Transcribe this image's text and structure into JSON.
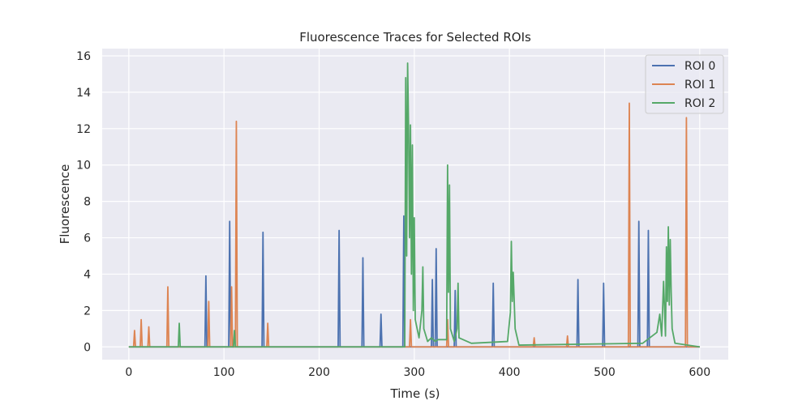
{
  "chart_data": {
    "type": "line",
    "title": "Fluorescence Traces for Selected ROIs",
    "xlabel": "Time (s)",
    "ylabel": "Fluorescence",
    "xlim": [
      -28,
      630
    ],
    "ylim": [
      -0.7,
      16.4
    ],
    "xticks": [
      0,
      100,
      200,
      300,
      400,
      500,
      600
    ],
    "yticks": [
      0,
      2,
      4,
      6,
      8,
      10,
      12,
      14,
      16
    ],
    "grid": true,
    "legend_position": "top-right",
    "series": [
      {
        "name": "ROI 0",
        "color": "#4c72b0",
        "x": [
          0,
          80,
          81,
          82,
          105,
          106,
          107,
          140,
          141,
          142,
          220,
          221,
          222,
          245,
          246,
          247,
          264,
          265,
          266,
          288,
          289,
          290,
          318,
          319,
          320,
          322,
          323,
          324,
          342,
          343,
          344,
          382,
          383,
          384,
          471,
          472,
          473,
          498,
          499,
          500,
          535,
          536,
          537,
          545,
          546,
          547,
          600
        ],
        "y": [
          0,
          0,
          3.9,
          0,
          0,
          6.9,
          0,
          0,
          6.3,
          0,
          0,
          6.4,
          0,
          0,
          4.9,
          0,
          0,
          1.8,
          0,
          0,
          7.2,
          0,
          0,
          3.7,
          0,
          0,
          5.4,
          0,
          0,
          3.1,
          0,
          0,
          3.5,
          0,
          0,
          3.7,
          0,
          0,
          3.5,
          0,
          0,
          6.9,
          0,
          0,
          6.4,
          0,
          0
        ]
      },
      {
        "name": "ROI 1",
        "color": "#dd8452",
        "x": [
          0,
          5,
          6,
          7,
          12,
          13,
          14,
          20,
          21,
          22,
          40,
          41,
          42,
          83,
          84,
          85,
          107,
          108,
          109,
          112,
          113,
          114,
          145,
          146,
          147,
          295,
          296,
          297,
          334,
          335,
          336,
          425,
          426,
          427,
          460,
          461,
          462,
          525,
          526,
          527,
          585,
          586,
          587,
          600
        ],
        "y": [
          0,
          0,
          0.9,
          0,
          0,
          1.5,
          0,
          0,
          1.1,
          0,
          0,
          3.3,
          0,
          0,
          2.5,
          0,
          0,
          3.3,
          0,
          0,
          12.4,
          0,
          0,
          1.3,
          0,
          0,
          1.5,
          0,
          0,
          1.5,
          0,
          0,
          0.5,
          0,
          0,
          0.6,
          0,
          0,
          13.4,
          0,
          0,
          12.6,
          0,
          0
        ]
      },
      {
        "name": "ROI 2",
        "color": "#55a868",
        "x": [
          0,
          52,
          53,
          54,
          110,
          111,
          112,
          290,
          291,
          292,
          293,
          294,
          295,
          296,
          297,
          298,
          299,
          300,
          301,
          305,
          308,
          309,
          310,
          314,
          318,
          322,
          325,
          334,
          335,
          336,
          337,
          338,
          342,
          345,
          346,
          347,
          360,
          398,
          401,
          402,
          403,
          404,
          406,
          410,
          540,
          555,
          558,
          560,
          562,
          564,
          565,
          566,
          567,
          568,
          569,
          570,
          571,
          574,
          600
        ],
        "y": [
          0,
          0,
          1.3,
          0,
          0,
          0.9,
          0,
          0,
          14.8,
          5.0,
          15.6,
          12.0,
          6.0,
          12.2,
          4.0,
          11.1,
          2.0,
          7.1,
          1.5,
          0.5,
          2.0,
          4.4,
          1.0,
          0.3,
          0.5,
          0.3,
          0.4,
          0.4,
          10.0,
          3.0,
          8.9,
          1.0,
          0.3,
          1.0,
          3.5,
          0.5,
          0.2,
          0.3,
          1.9,
          5.8,
          2.5,
          4.1,
          1.0,
          0.1,
          0.2,
          0.8,
          1.8,
          0.6,
          3.6,
          0.6,
          5.5,
          2.5,
          6.6,
          2.3,
          5.9,
          3.0,
          1.0,
          0.2,
          0
        ]
      }
    ]
  }
}
